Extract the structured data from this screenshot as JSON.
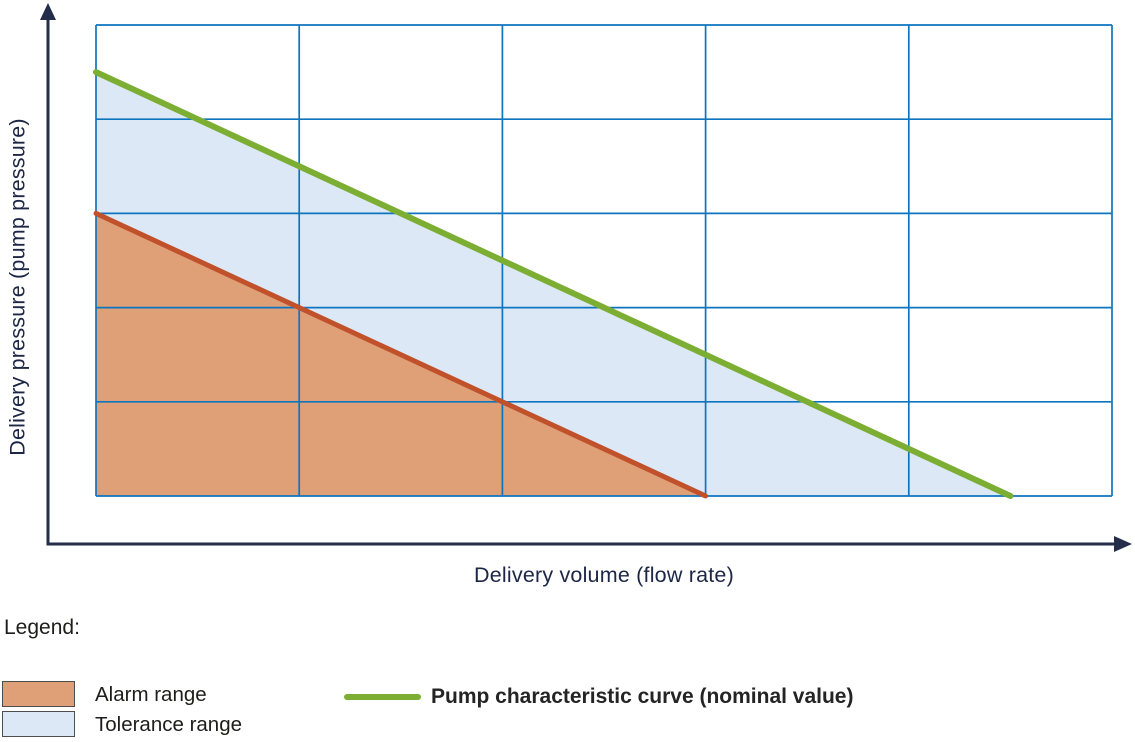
{
  "chart_data": {
    "type": "area",
    "title": "",
    "xlabel": "Delivery volume (flow rate)",
    "ylabel": "Delivery pressure (pump pressure)",
    "x_range": [
      0,
      5
    ],
    "y_range": [
      0,
      5
    ],
    "grid": true,
    "grid_divisions_x": 5,
    "grid_divisions_y": 5,
    "grid_color": "#0d75bf",
    "axis_color": "#242e4a",
    "axes_have_tick_labels": false,
    "legend_position": "below",
    "series": [
      {
        "name": "Tolerance range",
        "type": "area",
        "fill": "#dce8f6",
        "points": [
          [
            0,
            4.5
          ],
          [
            4.5,
            0
          ],
          [
            0,
            0
          ]
        ]
      },
      {
        "name": "Alarm range",
        "type": "area",
        "fill": "#dfa078",
        "points": [
          [
            0,
            3
          ],
          [
            3,
            0
          ],
          [
            0,
            0
          ]
        ]
      },
      {
        "name": "Alarm range boundary",
        "type": "line",
        "stroke": "#c0512b",
        "width": 5,
        "points": [
          [
            0,
            3
          ],
          [
            3,
            0
          ]
        ]
      },
      {
        "name": "Pump characteristic curve (nominal value)",
        "type": "line",
        "stroke": "#7bae33",
        "width": 6,
        "points": [
          [
            0,
            4.5
          ],
          [
            4.5,
            0
          ]
        ]
      }
    ]
  },
  "legend": {
    "title": "Legend:",
    "items": [
      {
        "label": "Alarm range",
        "swatch": "rect",
        "color": "#dfa078",
        "border_color": "#4d4d4d"
      },
      {
        "label": "Tolerance range",
        "swatch": "rect",
        "color": "#dce8f6",
        "border_color": "#4d4d4d"
      },
      {
        "label": "Pump characteristic curve (nominal value)",
        "swatch": "line",
        "color": "#7bae33"
      }
    ]
  }
}
